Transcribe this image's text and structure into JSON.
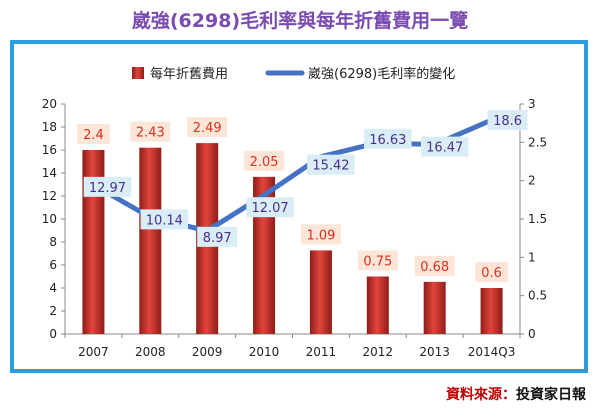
{
  "page": {
    "title": "崴強(6298)毛利率與每年折舊費用一覽",
    "source_label": "資料來源：",
    "source_name": "投資家日報"
  },
  "colors": {
    "title": "#7a4bb0",
    "frame": "#2a9de0",
    "bar": "#c0302a",
    "line": "#4472c4",
    "bar_label_bg": "#fde5d8",
    "bar_label_text": "#e0301e",
    "line_label_bg": "#d9edf7",
    "line_label_text": "#4b2f8f",
    "source_label": "#c00000"
  },
  "chart_data": {
    "type": "bar",
    "categories": [
      "2007",
      "2008",
      "2009",
      "2010",
      "2011",
      "2012",
      "2013",
      "2014Q3"
    ],
    "series": [
      {
        "name": "每年折舊費用",
        "type": "bar",
        "axis": "right",
        "values": [
          2.4,
          2.43,
          2.49,
          2.05,
          1.09,
          0.75,
          0.68,
          0.6
        ],
        "labels": [
          "2.4",
          "2.43",
          "2.49",
          "2.05",
          "1.09",
          "0.75",
          "0.68",
          "0.6"
        ]
      },
      {
        "name": "崴強(6298)毛利率的變化",
        "type": "line",
        "axis": "left",
        "values": [
          12.97,
          10.14,
          8.97,
          12.07,
          15.42,
          16.63,
          16.47,
          18.6
        ],
        "labels": [
          "12.97",
          "10.14",
          "8.97",
          "12.07",
          "15.42",
          "16.63",
          "16.47",
          "18.6"
        ]
      }
    ],
    "y_left": {
      "min": 0,
      "max": 20,
      "ticks": [
        "0",
        "2",
        "4",
        "6",
        "8",
        "10",
        "12",
        "14",
        "16",
        "18",
        "20"
      ]
    },
    "y_right": {
      "min": 0,
      "max": 3,
      "ticks": [
        "0",
        "0.5",
        "1",
        "1.5",
        "2",
        "2.5",
        "3"
      ]
    },
    "title": "崴強(6298)毛利率與每年折舊費用一覽",
    "xlabel": "",
    "ylabel": "",
    "legend": "top",
    "grid": false
  }
}
